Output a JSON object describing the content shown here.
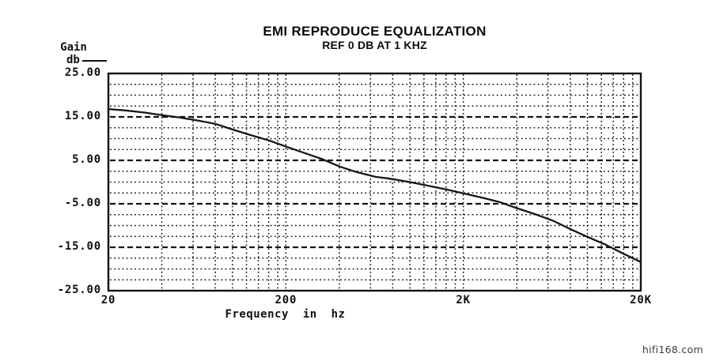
{
  "watermark": "hifi168.com",
  "chart_data": {
    "type": "line",
    "title": "EMI REPRODUCE EQUALIZATION",
    "subtitle": "REF 0 DB AT 1 KHZ",
    "ylabel": "Gain",
    "ylabel_unit": "db",
    "xlabel": "Frequency in hz",
    "x_scale": "log",
    "xlim": [
      20,
      20000
    ],
    "ylim": [
      -25,
      25
    ],
    "y_ticks": [
      {
        "value": 25,
        "label": "25.00"
      },
      {
        "value": 15,
        "label": "15.00"
      },
      {
        "value": 5,
        "label": "5.00"
      },
      {
        "value": -5,
        "label": "-5.00"
      },
      {
        "value": -15,
        "label": "-15.00"
      },
      {
        "value": -25,
        "label": "-25.00"
      }
    ],
    "x_ticks": [
      {
        "value": 20,
        "label": "20"
      },
      {
        "value": 200,
        "label": "200"
      },
      {
        "value": 2000,
        "label": "2K"
      },
      {
        "value": 20000,
        "label": "20K"
      }
    ],
    "grid": {
      "minor_x": [
        40,
        60,
        80,
        100,
        120,
        140,
        160,
        180,
        200,
        400,
        600,
        800,
        1000,
        1200,
        1400,
        1600,
        1800,
        2000,
        4000,
        6000,
        8000,
        10000,
        12000,
        14000,
        16000,
        18000
      ],
      "minor_y": [
        22.5,
        20,
        17.5,
        12.5,
        10,
        7.5,
        2.5,
        0,
        -2.5,
        -7.5,
        -10,
        -12.5,
        -17.5,
        -20,
        -22.5
      ],
      "major_y": [
        15,
        5,
        -5,
        -15
      ],
      "minor_style": "dotted",
      "major_style": "dashed"
    },
    "series": [
      {
        "name": "reproduce-eq-response",
        "points": [
          [
            20,
            16.8
          ],
          [
            25,
            16.5
          ],
          [
            32,
            16.0
          ],
          [
            40,
            15.4
          ],
          [
            50,
            14.9
          ],
          [
            63,
            14.2
          ],
          [
            80,
            13.4
          ],
          [
            100,
            12.1
          ],
          [
            125,
            10.9
          ],
          [
            160,
            9.6
          ],
          [
            200,
            8.2
          ],
          [
            250,
            6.8
          ],
          [
            320,
            5.3
          ],
          [
            400,
            3.6
          ],
          [
            500,
            2.3
          ],
          [
            640,
            1.2
          ],
          [
            800,
            0.7
          ],
          [
            1000,
            0.0
          ],
          [
            1250,
            -0.8
          ],
          [
            1600,
            -1.7
          ],
          [
            2000,
            -2.6
          ],
          [
            2500,
            -3.5
          ],
          [
            3200,
            -4.6
          ],
          [
            4000,
            -6.0
          ],
          [
            5000,
            -7.3
          ],
          [
            6400,
            -8.9
          ],
          [
            8000,
            -10.8
          ],
          [
            10000,
            -12.6
          ],
          [
            12500,
            -14.3
          ],
          [
            16000,
            -16.5
          ],
          [
            20000,
            -18.4
          ]
        ]
      }
    ]
  }
}
